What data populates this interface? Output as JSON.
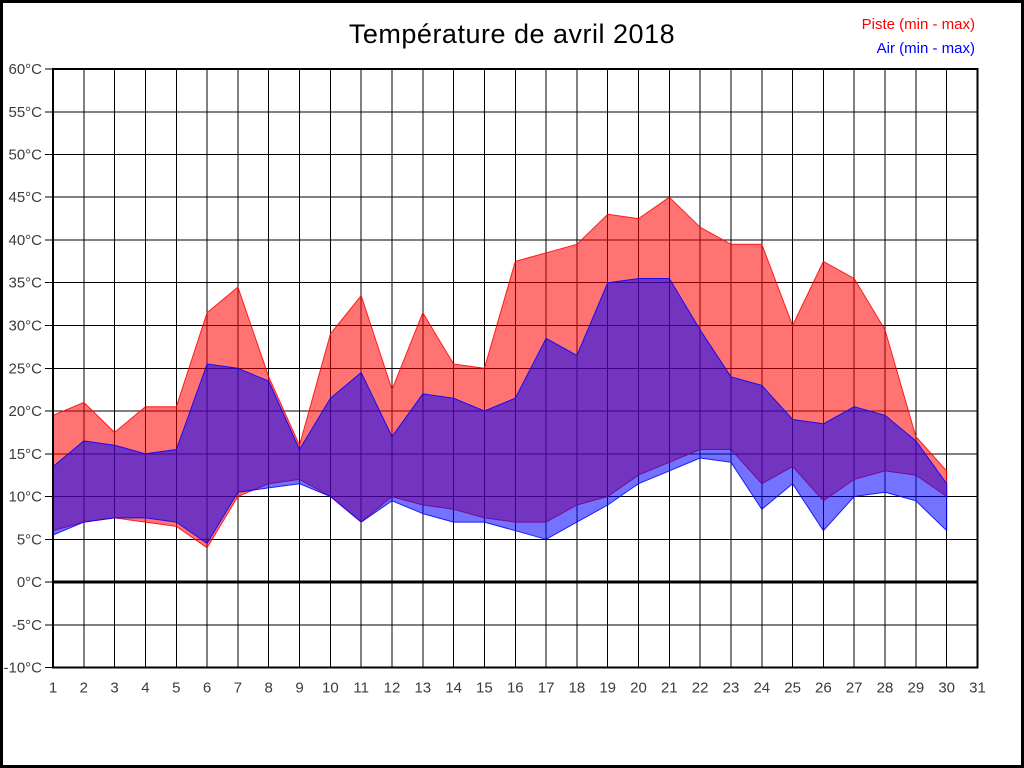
{
  "chart_data": {
    "type": "area",
    "title": "Température de avril 2018",
    "subtitle": "",
    "grid": true,
    "legend_position": "top-right",
    "x_axis": {
      "min": 1,
      "max": 31,
      "ticks": [
        {
          "value": 1,
          "label": "1"
        },
        {
          "value": 2,
          "label": "2"
        },
        {
          "value": 3,
          "label": "3"
        },
        {
          "value": 4,
          "label": "4"
        },
        {
          "value": 5,
          "label": "5"
        },
        {
          "value": 6,
          "label": "6"
        },
        {
          "value": 7,
          "label": "7"
        },
        {
          "value": 8,
          "label": "8"
        },
        {
          "value": 9,
          "label": "9"
        },
        {
          "value": 10,
          "label": "10"
        },
        {
          "value": 11,
          "label": "11"
        },
        {
          "value": 12,
          "label": "12"
        },
        {
          "value": 13,
          "label": "13"
        },
        {
          "value": 14,
          "label": "14"
        },
        {
          "value": 15,
          "label": "15"
        },
        {
          "value": 16,
          "label": "16"
        },
        {
          "value": 17,
          "label": "17"
        },
        {
          "value": 18,
          "label": "18"
        },
        {
          "value": 19,
          "label": "19"
        },
        {
          "value": 20,
          "label": "20"
        },
        {
          "value": 21,
          "label": "21"
        },
        {
          "value": 22,
          "label": "22"
        },
        {
          "value": 23,
          "label": "23"
        },
        {
          "value": 24,
          "label": "24"
        },
        {
          "value": 25,
          "label": "25"
        },
        {
          "value": 26,
          "label": "26"
        },
        {
          "value": 27,
          "label": "27"
        },
        {
          "value": 28,
          "label": "28"
        },
        {
          "value": 29,
          "label": "29"
        },
        {
          "value": 30,
          "label": "30"
        },
        {
          "value": 31,
          "label": "31"
        }
      ]
    },
    "y_axis": {
      "min": -10,
      "max": 60,
      "zero_line": true,
      "ticks": [
        {
          "value": 60,
          "label": "60°C"
        },
        {
          "value": 55,
          "label": "55°C"
        },
        {
          "value": 50,
          "label": "50°C"
        },
        {
          "value": 45,
          "label": "45°C"
        },
        {
          "value": 40,
          "label": "40°C"
        },
        {
          "value": 35,
          "label": "35°C"
        },
        {
          "value": 30,
          "label": "30°C"
        },
        {
          "value": 25,
          "label": "25°C"
        },
        {
          "value": 20,
          "label": "20°C"
        },
        {
          "value": 15,
          "label": "15°C"
        },
        {
          "value": 10,
          "label": "10°C"
        },
        {
          "value": 5,
          "label": "5°C"
        },
        {
          "value": 0,
          "label": "0°C"
        },
        {
          "value": -5,
          "label": "-5°C"
        },
        {
          "value": -10,
          "label": "-10°C"
        }
      ]
    },
    "days": [
      1,
      2,
      3,
      4,
      5,
      6,
      7,
      8,
      9,
      10,
      11,
      12,
      13,
      14,
      15,
      16,
      17,
      18,
      19,
      20,
      21,
      22,
      23,
      24,
      25,
      26,
      27,
      28,
      29,
      30
    ],
    "series": [
      {
        "name": "Piste (min - max)",
        "color": "#ff0000",
        "fill_opacity": 0.55,
        "max": [
          19.5,
          21,
          17.5,
          20.5,
          20.5,
          31.5,
          34.5,
          24,
          16,
          29,
          33.5,
          22.5,
          31.5,
          25.5,
          25,
          37.5,
          38.5,
          39.5,
          43,
          42.5,
          45,
          41.5,
          39.5,
          39.5,
          30,
          37.5,
          35.5,
          29.5,
          17,
          13
        ],
        "min": [
          6,
          7,
          7.5,
          7,
          6.5,
          4,
          10,
          11.5,
          12,
          10,
          7,
          10,
          9,
          8.5,
          7.5,
          7,
          7,
          9,
          10,
          12.5,
          14,
          15.5,
          15.5,
          11.5,
          13.5,
          9.5,
          12,
          13,
          12.5,
          10
        ]
      },
      {
        "name": "Air (min - max)",
        "color": "#0000ff",
        "fill_opacity": 0.55,
        "max": [
          13.5,
          16.5,
          16,
          15,
          15.5,
          25.5,
          25,
          23.5,
          15.5,
          21.5,
          24.5,
          17,
          22,
          21.5,
          20,
          21.5,
          28.5,
          26.5,
          35,
          35.5,
          35.5,
          29.5,
          24,
          23,
          19,
          18.5,
          20.5,
          19.5,
          16.5,
          11.5
        ],
        "min": [
          5.5,
          7,
          7.5,
          7.5,
          7,
          4.5,
          10.5,
          11,
          11.5,
          10,
          7,
          9.5,
          8,
          7,
          7,
          6,
          5,
          7,
          9,
          11.5,
          13,
          14.5,
          14,
          8.5,
          11.5,
          6,
          10,
          10.5,
          9.5,
          6
        ]
      }
    ]
  }
}
